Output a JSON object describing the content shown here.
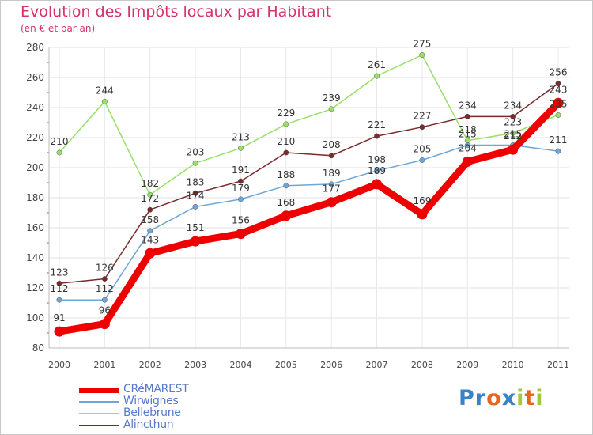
{
  "header": {
    "title": "Evolution des Impôts locaux par Habitant",
    "subtitle": "(en € et par an)"
  },
  "logo": {
    "text": "Proxiti",
    "letters": [
      "P",
      "r",
      "o",
      "x",
      "i",
      "t",
      "i"
    ],
    "colors": [
      "#3b82c4",
      "#3b82c4",
      "#e8641c",
      "#3b82c4",
      "#a4c83c",
      "#e8641c",
      "#a4c83c"
    ]
  },
  "chart_data": {
    "type": "line",
    "title": "Evolution des Impôts locaux par Habitant",
    "subtitle": "(en € et par an)",
    "xlabel": "",
    "ylabel": "",
    "categories": [
      "2000",
      "2001",
      "2002",
      "2003",
      "2004",
      "2005",
      "2006",
      "2007",
      "2008",
      "2009",
      "2010",
      "2011"
    ],
    "ylim": [
      80,
      280
    ],
    "yticks": [
      80,
      100,
      120,
      140,
      160,
      180,
      200,
      220,
      240,
      260,
      280
    ],
    "grid": true,
    "series": [
      {
        "name": "CRéMAREST",
        "color": "#ee0000",
        "values": [
          91,
          96,
          143,
          151,
          156,
          168,
          177,
          189,
          169,
          204,
          212,
          243
        ],
        "labels": [
          "91",
          "96",
          "143",
          "151",
          "156",
          "168",
          "177",
          "189",
          "169",
          "204",
          "212",
          "243"
        ]
      },
      {
        "name": "Wirwignes",
        "color": "#6ea6d6",
        "values": [
          112,
          112,
          158,
          174,
          179,
          188,
          189,
          198,
          205,
          215,
          215,
          211
        ],
        "labels": [
          "112",
          "112",
          "158",
          "174",
          "179",
          "188",
          "189",
          "198",
          "205",
          "215",
          "215",
          "211"
        ]
      },
      {
        "name": "Bellebrune",
        "color": "#99e066",
        "values": [
          210,
          244,
          182,
          203,
          213,
          229,
          239,
          261,
          275,
          218,
          223,
          235
        ],
        "labels": [
          "210",
          "244",
          "182",
          "203",
          "213",
          "229",
          "239",
          "261",
          "275",
          "218",
          "223",
          "235"
        ]
      },
      {
        "name": "Alincthun",
        "color": "#7a2a2a",
        "values": [
          123,
          126,
          172,
          183,
          191,
          210,
          208,
          221,
          227,
          234,
          234,
          256
        ],
        "labels": [
          "123",
          "126",
          "172",
          "183",
          "191",
          "210",
          "208",
          "221",
          "227",
          "234",
          "234",
          "256"
        ]
      }
    ]
  }
}
